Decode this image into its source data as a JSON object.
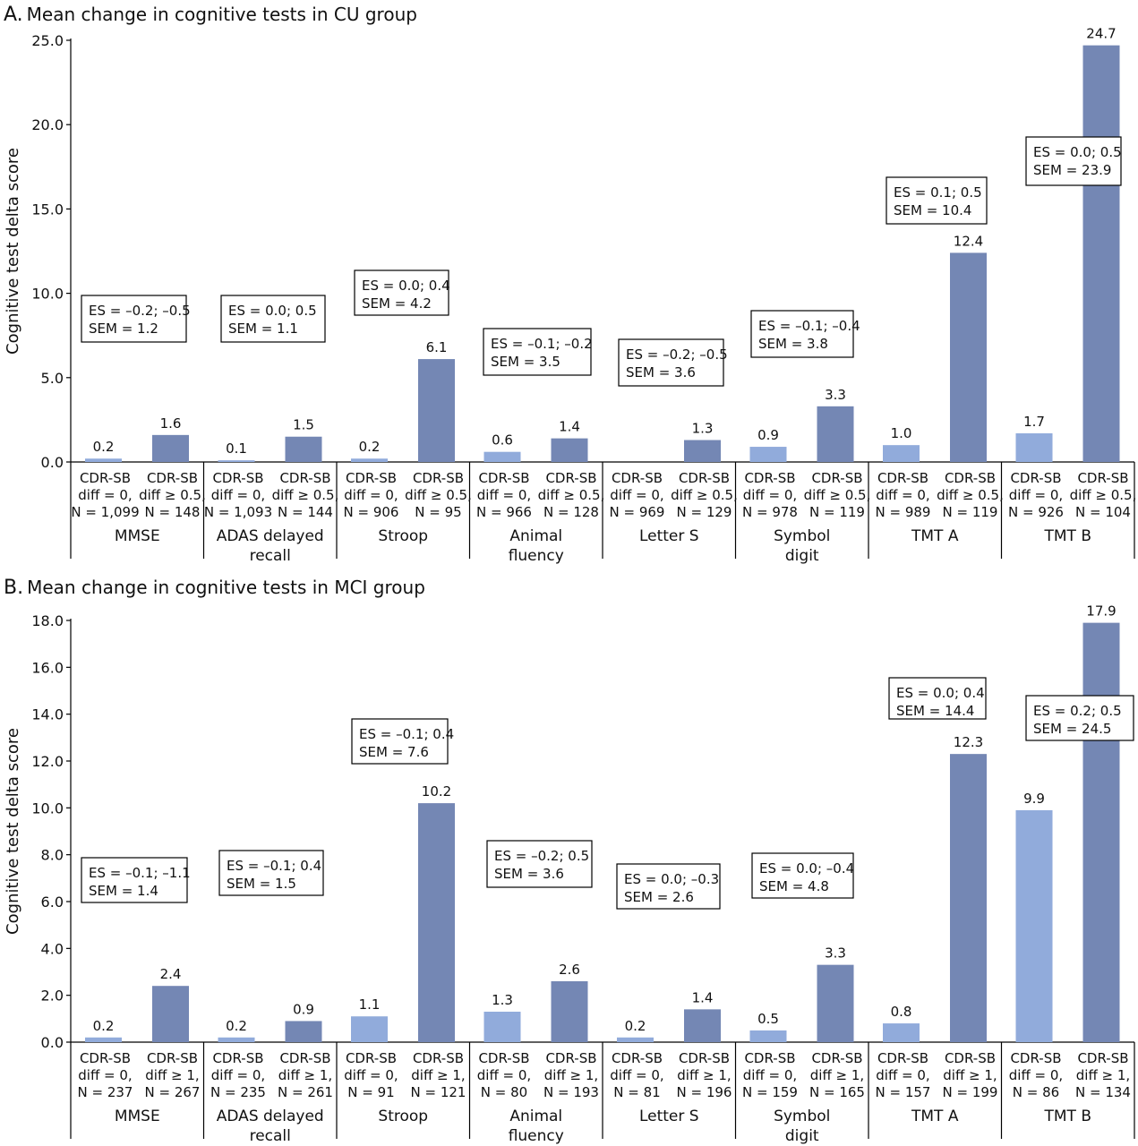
{
  "colors": {
    "light_bar": "#91abdb",
    "dark_bar": "#7487b4",
    "axis": "#000000",
    "box_border": "#000000"
  },
  "chart_data": [
    {
      "type": "bar",
      "panel_letter": "A.",
      "title": "Mean change in cognitive tests in CU group",
      "ylabel": "Cognitive test delta score",
      "ylim": [
        0,
        25
      ],
      "yticks": [
        "0.0",
        "5.0",
        "10.0",
        "15.0",
        "20.0",
        "25.0"
      ],
      "grid": false,
      "groups": [
        {
          "name": [
            "MMSE"
          ],
          "es": [
            "ES = –0.2; –0.5",
            "SEM = 1.2"
          ],
          "bars": [
            {
              "value": 0.2,
              "label": "0.2",
              "text": [
                "CDR-SB",
                "diff = 0,",
                "N = 1,099"
              ]
            },
            {
              "value": 1.6,
              "label": "1.6",
              "text": [
                "CDR-SB",
                "diff ≥ 0.5,",
                "N = 148"
              ]
            }
          ]
        },
        {
          "name": [
            "ADAS delayed",
            "recall"
          ],
          "es": [
            "ES = 0.0; 0.5",
            "SEM = 1.1"
          ],
          "bars": [
            {
              "value": 0.1,
              "label": "0.1",
              "text": [
                "CDR-SB",
                "diff = 0,",
                "N = 1,093"
              ]
            },
            {
              "value": 1.5,
              "label": "1.5",
              "text": [
                "CDR-SB",
                "diff ≥ 0.5,",
                "N = 144"
              ]
            }
          ]
        },
        {
          "name": [
            "Stroop"
          ],
          "es": [
            "ES = 0.0; 0.4",
            "SEM = 4.2"
          ],
          "bars": [
            {
              "value": 0.2,
              "label": "0.2",
              "text": [
                "CDR-SB",
                "diff = 0,",
                "N = 906"
              ]
            },
            {
              "value": 6.1,
              "label": "6.1",
              "text": [
                "CDR-SB",
                "diff ≥ 0.5,",
                "N = 95"
              ]
            }
          ]
        },
        {
          "name": [
            "Animal",
            "fluency"
          ],
          "es": [
            "ES = –0.1; –0.2",
            "SEM = 3.5"
          ],
          "bars": [
            {
              "value": 0.6,
              "label": "0.6",
              "text": [
                "CDR-SB",
                "diff = 0,",
                "N = 966"
              ]
            },
            {
              "value": 1.4,
              "label": "1.4",
              "text": [
                "CDR-SB",
                "diff ≥ 0.5,",
                "N = 128"
              ]
            }
          ]
        },
        {
          "name": [
            "Letter S"
          ],
          "es": [
            "ES = –0.2; –0.5",
            "SEM = 3.6"
          ],
          "bars": [
            {
              "value": 0.0,
              "label": "",
              "text": [
                "CDR-SB",
                "diff = 0,",
                "N = 969"
              ]
            },
            {
              "value": 1.3,
              "label": "1.3",
              "text": [
                "CDR-SB",
                "diff ≥ 0.5,",
                "N = 129"
              ]
            }
          ]
        },
        {
          "name": [
            "Symbol",
            "digit"
          ],
          "es": [
            "ES = –0.1; –0.4",
            "SEM = 3.8"
          ],
          "bars": [
            {
              "value": 0.9,
              "label": "0.9",
              "text": [
                "CDR-SB",
                "diff = 0,",
                "N = 978"
              ]
            },
            {
              "value": 3.3,
              "label": "3.3",
              "text": [
                "CDR-SB",
                "diff ≥ 0.5,",
                "N = 119"
              ]
            }
          ]
        },
        {
          "name": [
            "TMT A"
          ],
          "es": [
            "ES = 0.1; 0.5",
            "SEM = 10.4"
          ],
          "bars": [
            {
              "value": 1.0,
              "label": "1.0",
              "text": [
                "CDR-SB",
                "diff = 0,",
                "N = 989"
              ]
            },
            {
              "value": 12.4,
              "label": "12.4",
              "text": [
                "CDR-SB",
                "diff ≥ 0.5,",
                "N = 119"
              ]
            }
          ]
        },
        {
          "name": [
            "TMT B"
          ],
          "es": [
            "ES = 0.0; 0.5",
            "SEM = 23.9"
          ],
          "bars": [
            {
              "value": 1.7,
              "label": "1.7",
              "text": [
                "CDR-SB",
                "diff = 0,",
                "N = 926"
              ]
            },
            {
              "value": 24.7,
              "label": "24.7",
              "text": [
                "CDR-SB",
                "diff ≥ 0.5,",
                "N = 104"
              ]
            }
          ]
        }
      ]
    },
    {
      "type": "bar",
      "panel_letter": "B.",
      "title": "Mean change in cognitive tests in MCI group",
      "ylabel": "Cognitive test delta score",
      "ylim": [
        0,
        18
      ],
      "yticks": [
        "0.0",
        "2.0",
        "4.0",
        "6.0",
        "8.0",
        "10.0",
        "12.0",
        "14.0",
        "16.0",
        "18.0"
      ],
      "grid": false,
      "groups": [
        {
          "name": [
            "MMSE"
          ],
          "es": [
            "ES = –0.1; –1.1",
            "SEM = 1.4"
          ],
          "bars": [
            {
              "value": 0.2,
              "label": "0.2",
              "text": [
                "CDR-SB",
                "diff = 0,",
                "N = 237"
              ]
            },
            {
              "value": 2.4,
              "label": "2.4",
              "text": [
                "CDR-SB",
                "diff ≥ 1,",
                "N = 267"
              ]
            }
          ]
        },
        {
          "name": [
            "ADAS delayed",
            "recall"
          ],
          "es": [
            "ES = –0.1; 0.4",
            "SEM = 1.5"
          ],
          "bars": [
            {
              "value": 0.2,
              "label": "0.2",
              "text": [
                "CDR-SB",
                "diff = 0,",
                "N = 235"
              ]
            },
            {
              "value": 0.9,
              "label": "0.9",
              "text": [
                "CDR-SB",
                "diff ≥ 1,",
                "N = 261"
              ]
            }
          ]
        },
        {
          "name": [
            "Stroop"
          ],
          "es": [
            "ES = –0.1; 0.4",
            "SEM = 7.6"
          ],
          "bars": [
            {
              "value": 1.1,
              "label": "1.1",
              "text": [
                "CDR-SB",
                "diff = 0,",
                "N = 91"
              ]
            },
            {
              "value": 10.2,
              "label": "10.2",
              "text": [
                "CDR-SB",
                "diff ≥ 1,",
                "N = 121"
              ]
            }
          ]
        },
        {
          "name": [
            "Animal",
            "fluency"
          ],
          "es": [
            "ES = –0.2; 0.5",
            "SEM = 3.6"
          ],
          "bars": [
            {
              "value": 1.3,
              "label": "1.3",
              "text": [
                "CDR-SB",
                "diff = 0,",
                "N = 80"
              ]
            },
            {
              "value": 2.6,
              "label": "2.6",
              "text": [
                "CDR-SB",
                "diff ≥ 1,",
                "N = 193"
              ]
            }
          ]
        },
        {
          "name": [
            "Letter S"
          ],
          "es": [
            "ES = 0.0; –0.3",
            "SEM = 2.6"
          ],
          "bars": [
            {
              "value": 0.2,
              "label": "0.2",
              "text": [
                "CDR-SB",
                "diff = 0,",
                "N = 81"
              ]
            },
            {
              "value": 1.4,
              "label": "1.4",
              "text": [
                "CDR-SB",
                "diff ≥ 1,",
                "N = 196"
              ]
            }
          ]
        },
        {
          "name": [
            "Symbol",
            "digit"
          ],
          "es": [
            "ES = 0.0; –0.4",
            "SEM = 4.8"
          ],
          "bars": [
            {
              "value": 0.5,
              "label": "0.5",
              "text": [
                "CDR-SB",
                "diff = 0,",
                "N = 159"
              ]
            },
            {
              "value": 3.3,
              "label": "3.3",
              "text": [
                "CDR-SB",
                "diff ≥ 1,",
                "N = 165"
              ]
            }
          ]
        },
        {
          "name": [
            "TMT A"
          ],
          "es": [
            "ES = 0.0; 0.4",
            "SEM = 14.4"
          ],
          "bars": [
            {
              "value": 0.8,
              "label": "0.8",
              "text": [
                "CDR-SB",
                "diff = 0,",
                "N = 157"
              ]
            },
            {
              "value": 12.3,
              "label": "12.3",
              "text": [
                "CDR-SB",
                "diff ≥ 1,",
                "N = 199"
              ]
            }
          ]
        },
        {
          "name": [
            "TMT B"
          ],
          "es": [
            "ES = 0.2; 0.5",
            "SEM = 24.5"
          ],
          "bars": [
            {
              "value": 9.9,
              "label": "9.9",
              "text": [
                "CDR-SB",
                "diff = 0,",
                "N = 86"
              ]
            },
            {
              "value": 17.9,
              "label": "17.9",
              "text": [
                "CDR-SB",
                "diff ≥ 1,",
                "N = 134"
              ]
            }
          ]
        }
      ]
    }
  ]
}
